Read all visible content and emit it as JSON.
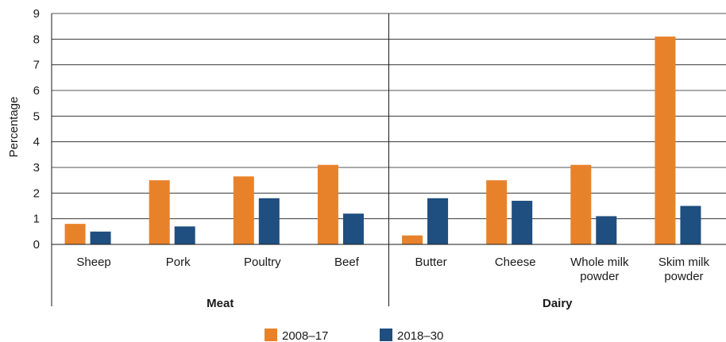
{
  "chart_data": {
    "type": "bar",
    "ylabel": "Percentage",
    "ylim": [
      0,
      9
    ],
    "yticks": [
      0,
      1,
      2,
      3,
      4,
      5,
      6,
      7,
      8,
      9
    ],
    "grid": true,
    "legend_position": "bottom",
    "groups": [
      {
        "name": "Meat",
        "categories": [
          "Sheep",
          "Pork",
          "Poultry",
          "Beef"
        ]
      },
      {
        "name": "Dairy",
        "categories": [
          "Butter",
          "Cheese",
          "Whole milk powder",
          "Skim milk powder"
        ]
      }
    ],
    "categories": [
      [
        "Sheep"
      ],
      [
        "Pork"
      ],
      [
        "Poultry"
      ],
      [
        "Beef"
      ],
      [
        "Butter"
      ],
      [
        "Cheese"
      ],
      [
        "Whole milk",
        "powder"
      ],
      [
        "Skim milk",
        "powder"
      ]
    ],
    "series": [
      {
        "name": "2008–17",
        "color": "#E8822A",
        "values": [
          0.8,
          2.5,
          2.65,
          3.1,
          0.35,
          2.5,
          3.1,
          8.1
        ]
      },
      {
        "name": "2018–30",
        "color": "#1F4E80",
        "values": [
          0.5,
          0.7,
          1.8,
          1.2,
          1.8,
          1.7,
          1.1,
          1.5
        ]
      }
    ]
  }
}
